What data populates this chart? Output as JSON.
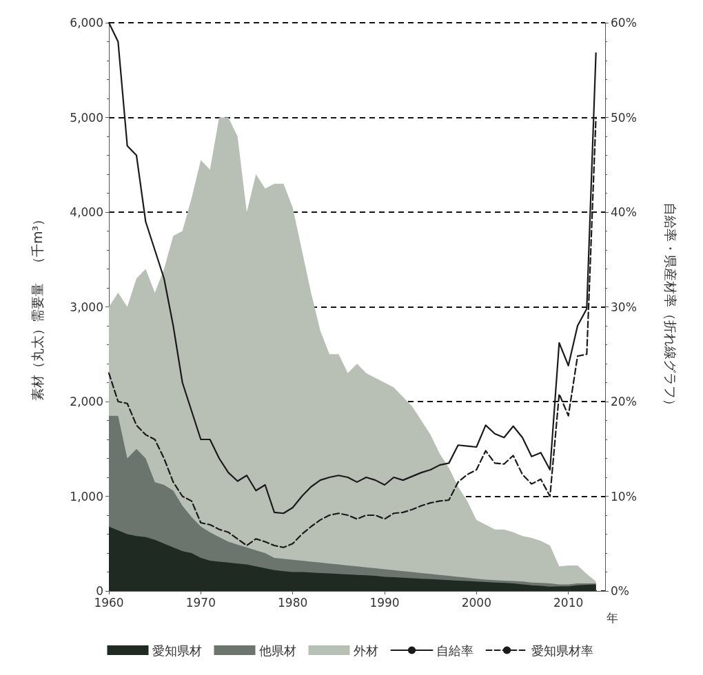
{
  "chart_data": {
    "type": "area",
    "xlabel": "年",
    "ylabel": "素材（丸太）需要量　（千m³）",
    "y2label": "自給率・県産材率（折れ線グラフ）",
    "x": [
      1960,
      1961,
      1962,
      1963,
      1964,
      1965,
      1966,
      1967,
      1968,
      1969,
      1970,
      1971,
      1972,
      1973,
      1974,
      1975,
      1976,
      1977,
      1978,
      1979,
      1980,
      1981,
      1982,
      1983,
      1984,
      1985,
      1986,
      1987,
      1988,
      1989,
      1990,
      1991,
      1992,
      1993,
      1994,
      1995,
      1996,
      1997,
      1998,
      1999,
      2000,
      2001,
      2002,
      2003,
      2004,
      2005,
      2006,
      2007,
      2008,
      2009,
      2010,
      2011,
      2012,
      2013
    ],
    "stacked": true,
    "legend": "bottom",
    "grid": "y",
    "marker": "none",
    "xlim": [
      1960,
      2014
    ],
    "xticks": [
      1960,
      1970,
      1980,
      1990,
      2000,
      2010
    ],
    "ylim": [
      0,
      6000
    ],
    "yticks": [
      0,
      {
        "value": 1000,
        "label": "1,000"
      },
      {
        "value": 2000,
        "label": "2,000"
      },
      {
        "value": 3000,
        "label": "3,000"
      },
      {
        "value": 4000,
        "label": "4,000"
      },
      {
        "value": 5000,
        "label": "5,000"
      },
      {
        "value": 6000,
        "label": "6,000"
      }
    ],
    "y2lim": [
      0,
      60
    ],
    "y2ticks": [
      {
        "value": 0,
        "label": "0%"
      },
      {
        "value": 10,
        "label": "10%"
      },
      {
        "value": 20,
        "label": "20%"
      },
      {
        "value": 30,
        "label": "30%"
      },
      {
        "value": 40,
        "label": "40%"
      },
      {
        "value": 50,
        "label": "50%"
      },
      {
        "value": 60,
        "label": "60%"
      }
    ],
    "series": [
      {
        "name": "愛知県材",
        "color": "#1f2a22",
        "values": [
          680,
          640,
          600,
          580,
          570,
          540,
          500,
          460,
          420,
          400,
          350,
          320,
          310,
          300,
          290,
          280,
          260,
          240,
          220,
          210,
          200,
          200,
          195,
          190,
          185,
          180,
          175,
          170,
          165,
          160,
          150,
          145,
          140,
          135,
          130,
          125,
          120,
          115,
          110,
          105,
          100,
          95,
          90,
          85,
          80,
          70,
          60,
          55,
          45,
          50,
          50,
          60,
          65,
          70
        ]
      },
      {
        "name": "他県材",
        "color": "#6b756d",
        "values": [
          1170,
          1210,
          800,
          920,
          830,
          610,
          620,
          600,
          480,
          380,
          330,
          300,
          260,
          220,
          200,
          180,
          170,
          160,
          130,
          130,
          130,
          120,
          115,
          110,
          105,
          100,
          95,
          90,
          85,
          80,
          80,
          75,
          70,
          65,
          60,
          55,
          50,
          45,
          40,
          35,
          30,
          25,
          25,
          25,
          25,
          30,
          30,
          30,
          35,
          20,
          20,
          20,
          15,
          10
        ]
      },
      {
        "name": "外材",
        "color": "#b8bfb5",
        "values": [
          1150,
          1300,
          1600,
          1800,
          2000,
          2000,
          2280,
          2690,
          2900,
          3370,
          3870,
          3830,
          4430,
          4480,
          4310,
          3540,
          3970,
          3850,
          3950,
          3960,
          3720,
          3280,
          2840,
          2450,
          2210,
          2220,
          2030,
          2140,
          2050,
          2010,
          1970,
          1930,
          1840,
          1750,
          1610,
          1470,
          1280,
          1140,
          950,
          810,
          620,
          580,
          535,
          540,
          515,
          480,
          470,
          445,
          400,
          190,
          200,
          190,
          100,
          20
        ]
      },
      {
        "name": "自給率",
        "type": "line",
        "axis": "y2",
        "color": "#1a1a1a",
        "line_style": "solid",
        "values": [
          60,
          58,
          47,
          46,
          39,
          36,
          33,
          28,
          22,
          19,
          16,
          16,
          14,
          12.5,
          11.6,
          12.2,
          10.6,
          11.2,
          8.3,
          8.2,
          8.8,
          10,
          11,
          11.7,
          12,
          12.2,
          12,
          11.5,
          12,
          11.7,
          11.2,
          12,
          11.7,
          12.1,
          12.5,
          12.8,
          13.3,
          13.5,
          15.4,
          15.3,
          15.2,
          17.5,
          16.6,
          16.2,
          17.4,
          16.2,
          14.2,
          14.6,
          12.8,
          26.2,
          23.8,
          28,
          29.8,
          56.8
        ]
      },
      {
        "name": "愛知県材率",
        "type": "line",
        "axis": "y2",
        "color": "#1a1a1a",
        "line_style": "dashed",
        "values": [
          23,
          20,
          19.8,
          17.5,
          16.5,
          16,
          14,
          11.5,
          10,
          9.5,
          7.2,
          7,
          6.5,
          6.2,
          5.5,
          4.8,
          5.5,
          5.2,
          4.8,
          4.6,
          5,
          6,
          6.8,
          7.5,
          8,
          8.2,
          8,
          7.6,
          8,
          8,
          7.6,
          8.2,
          8.3,
          8.6,
          9,
          9.3,
          9.5,
          9.6,
          11.5,
          12.3,
          12.8,
          14.8,
          13.5,
          13.4,
          14.3,
          12.3,
          11.3,
          11.8,
          10,
          20.8,
          18.5,
          24.8,
          25,
          50
        ]
      }
    ]
  }
}
